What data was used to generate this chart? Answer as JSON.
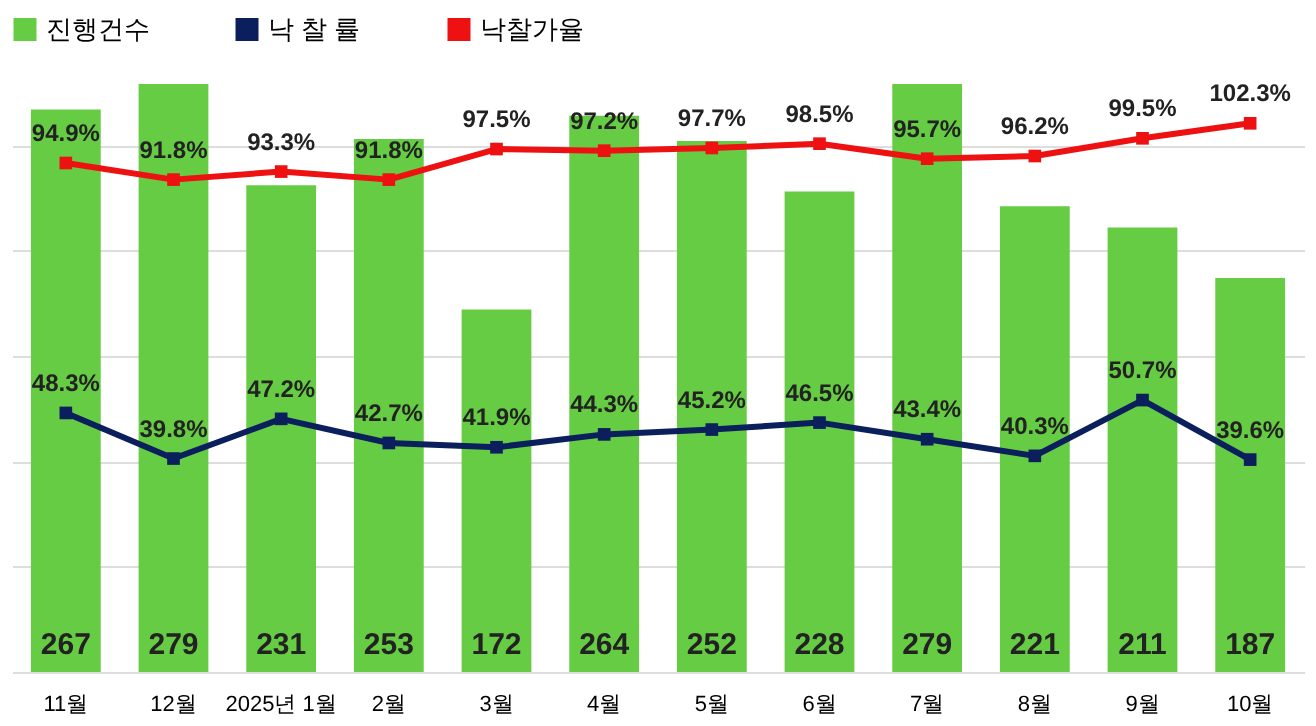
{
  "chart_data": {
    "type": "bar",
    "categories": [
      "11월",
      "12월",
      "2025년 1월",
      "2월",
      "3월",
      "4월",
      "5월",
      "6월",
      "7월",
      "8월",
      "9월",
      "10월"
    ],
    "series": [
      {
        "name": "진행건수",
        "color": "#66cc44",
        "values": [
          267,
          279,
          231,
          253,
          172,
          264,
          252,
          228,
          279,
          221,
          211,
          187
        ],
        "value_labels": [
          "267",
          "279",
          "231",
          "253",
          "172",
          "264",
          "252",
          "228",
          "279",
          "221",
          "211",
          "187"
        ]
      },
      {
        "name": "낙 찰 률",
        "type": "line",
        "axis": "y2",
        "color": "#0a1f5c",
        "values": [
          48.3,
          39.8,
          47.2,
          42.7,
          41.9,
          44.3,
          45.2,
          46.5,
          43.4,
          40.3,
          50.7,
          39.6
        ],
        "value_labels": [
          "48.3%",
          "39.8%",
          "47.2%",
          "42.7%",
          "41.9%",
          "44.3%",
          "45.2%",
          "46.5%",
          "43.4%",
          "40.3%",
          "50.7%",
          "39.6%"
        ]
      },
      {
        "name": "낙찰가율",
        "type": "line",
        "axis": "y2",
        "color": "#ee1111",
        "values": [
          94.9,
          91.8,
          93.3,
          91.8,
          97.5,
          97.2,
          97.7,
          98.5,
          95.7,
          96.2,
          99.5,
          102.3
        ],
        "value_labels": [
          "94.9%",
          "91.8%",
          "93.3%",
          "91.8%",
          "97.5%",
          "97.2%",
          "97.7%",
          "98.5%",
          "95.7%",
          "96.2%",
          "99.5%",
          "102.3%"
        ]
      }
    ],
    "grid": "y",
    "legend": "top",
    "tick_labels": "x",
    "marker": "square"
  }
}
